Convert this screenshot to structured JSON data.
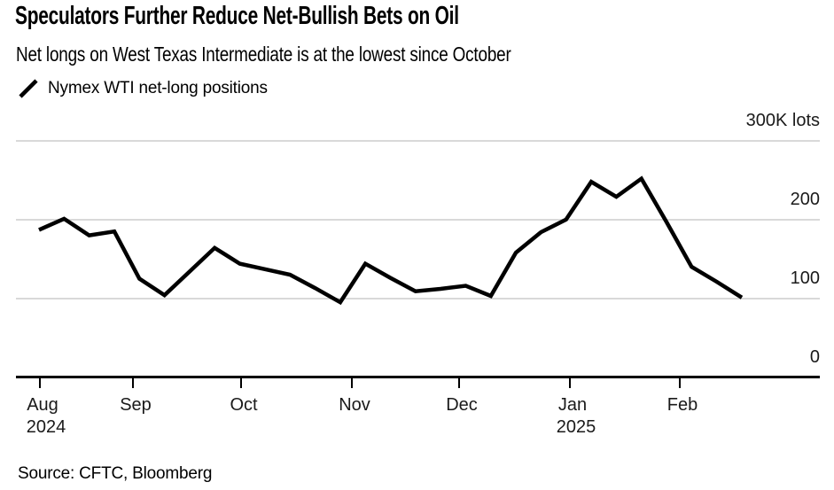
{
  "header": {
    "title": "Speculators Further Reduce Net-Bullish Bets on Oil",
    "subtitle": "Net longs on West Texas Intermediate is at the lowest since October"
  },
  "legend": {
    "marker": "black-line-sample",
    "series_label": "Nymex WTI net-long positions"
  },
  "chart_data": {
    "type": "line",
    "title": "Speculators Further Reduce Net-Bullish Bets on Oil",
    "subtitle": "Net longs on West Texas Intermediate is at the lowest since October",
    "unit": "K lots",
    "ylim": [
      0,
      300
    ],
    "grid": "horizontal-only",
    "legend_position": "top-left",
    "line_color": "#000000",
    "grid_color": "#d9d9d9",
    "axis_color": "#000000",
    "background": "#ffffff",
    "y_ticks": [
      {
        "value": 0,
        "label": "0"
      },
      {
        "value": 100,
        "label": "100"
      },
      {
        "value": 200,
        "label": "200"
      },
      {
        "value": 300,
        "label": "300K lots"
      }
    ],
    "x_ticks": [
      {
        "label": "Aug",
        "year_label": "2024"
      },
      {
        "label": "Sep"
      },
      {
        "label": "Oct"
      },
      {
        "label": "Nov"
      },
      {
        "label": "Dec"
      },
      {
        "label": "Jan",
        "year_label": "2025"
      },
      {
        "label": "Feb"
      }
    ],
    "series": [
      {
        "name": "Nymex WTI net-long positions",
        "x_weekly_dates": [
          "2024-08-06",
          "2024-08-13",
          "2024-08-20",
          "2024-08-27",
          "2024-09-03",
          "2024-09-10",
          "2024-09-17",
          "2024-09-24",
          "2024-10-01",
          "2024-10-08",
          "2024-10-15",
          "2024-10-22",
          "2024-10-29",
          "2024-11-05",
          "2024-11-12",
          "2024-11-19",
          "2024-11-26",
          "2024-12-03",
          "2024-12-10",
          "2024-12-17",
          "2024-12-24",
          "2024-12-31",
          "2025-01-07",
          "2025-01-14",
          "2025-01-21",
          "2025-01-28",
          "2025-02-04",
          "2025-02-11",
          "2025-02-18"
        ],
        "values": [
          187,
          201,
          180,
          185,
          125,
          104,
          134,
          164,
          144,
          137,
          130,
          113,
          95,
          144,
          126,
          109,
          112,
          116,
          103,
          158,
          184,
          200,
          248,
          229,
          252,
          197,
          140,
          121,
          101
        ]
      }
    ]
  },
  "source": {
    "text": "Source: CFTC, Bloomberg"
  }
}
